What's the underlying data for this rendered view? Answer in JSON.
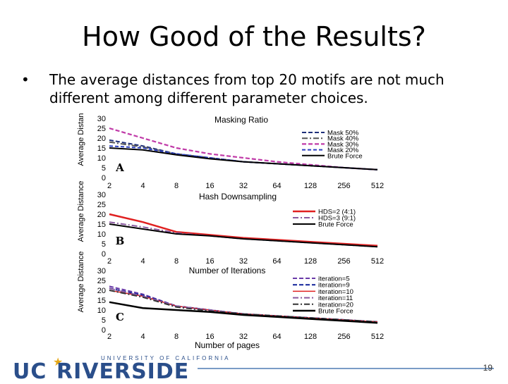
{
  "slide": {
    "title": "How Good of the Results?",
    "bullet_text": "The average distances from top 20 motifs are not much different among different parameter choices.",
    "page_number": "19",
    "logo_main_uc": "UC",
    "logo_main_riv": "RIVERSIDE",
    "logo_sub": "UNIVERSITY OF CALIFORNIA"
  },
  "chart_data": [
    {
      "type": "line",
      "panel_label": "A",
      "title": "Masking Ratio",
      "xlabel": "",
      "ylabel": "Average Distan",
      "categories": [
        "2",
        "4",
        "8",
        "16",
        "32",
        "64",
        "128",
        "256",
        "512"
      ],
      "yticks": [
        "0",
        "5",
        "10",
        "15",
        "20",
        "25",
        "30"
      ],
      "ylim": [
        0,
        30
      ],
      "legend_position": "top-right",
      "series": [
        {
          "name": "Mask 50%",
          "color": "#1f2f7a",
          "dash": "6,3",
          "width": 2,
          "values": [
            19,
            16,
            12,
            10,
            8,
            7,
            6,
            5,
            4
          ]
        },
        {
          "name": "Mask 40%",
          "color": "#555555",
          "dash": "8,3,2,3",
          "width": 2,
          "values": [
            18,
            15.5,
            12,
            10,
            8,
            7,
            6,
            5,
            4
          ]
        },
        {
          "name": "Mask 30%",
          "color": "#c03aa8",
          "dash": "6,3",
          "width": 2.2,
          "values": [
            25,
            20,
            15,
            12,
            10,
            8,
            6.5,
            5,
            4
          ]
        },
        {
          "name": "Mask 20%",
          "color": "#2b3fc0",
          "dash": "5,3",
          "width": 2,
          "values": [
            16,
            15,
            12,
            10,
            8,
            7,
            6,
            5,
            4
          ]
        },
        {
          "name": "Brute Force",
          "color": "#000000",
          "dash": "",
          "width": 2,
          "values": [
            15,
            14,
            11.5,
            9.5,
            8,
            7,
            6,
            5,
            4
          ]
        }
      ]
    },
    {
      "type": "line",
      "panel_label": "B",
      "title": "Hash Downsampling",
      "xlabel": "",
      "ylabel": "Average Distance",
      "categories": [
        "2",
        "4",
        "8",
        "16",
        "32",
        "64",
        "128",
        "256",
        "512"
      ],
      "yticks": [
        "0",
        "5",
        "10",
        "15",
        "20",
        "25",
        "30"
      ],
      "ylim": [
        0,
        30
      ],
      "legend_position": "top-right",
      "series": [
        {
          "name": "HDS=2 (4:1)",
          "color": "#e02020",
          "dash": "",
          "width": 2.5,
          "values": [
            20,
            16,
            11,
            9.5,
            8,
            7,
            6,
            5,
            4
          ]
        },
        {
          "name": "HDS=3 (9:1)",
          "color": "#8a5aa0",
          "dash": "8,3,2,3",
          "width": 2,
          "values": [
            16,
            13.5,
            10.5,
            9,
            7.5,
            6.5,
            5.5,
            4.5,
            3.5
          ]
        },
        {
          "name": "Brute Force",
          "color": "#000000",
          "dash": "",
          "width": 2,
          "values": [
            15,
            12.5,
            10,
            9,
            7.5,
            6.5,
            5.5,
            4.5,
            3.5
          ]
        }
      ]
    },
    {
      "type": "line",
      "panel_label": "C",
      "title": "Number of Iterations",
      "xlabel": "Number of pages",
      "ylabel": "Average Distance",
      "categories": [
        "2",
        "4",
        "8",
        "16",
        "32",
        "64",
        "128",
        "256",
        "512"
      ],
      "yticks": [
        "0",
        "5",
        "10",
        "15",
        "20",
        "25",
        "30"
      ],
      "ylim": [
        0,
        30
      ],
      "legend_position": "top-right",
      "series": [
        {
          "name": "iteration=5",
          "color": "#6a3aa8",
          "dash": "6,3",
          "width": 2,
          "values": [
            22,
            18,
            12,
            10,
            8,
            7,
            6,
            5,
            4
          ]
        },
        {
          "name": "iteration=9",
          "color": "#1f2fa0",
          "dash": "6,3",
          "width": 2.2,
          "values": [
            21,
            17.5,
            12,
            10,
            8,
            7,
            6,
            5,
            4
          ]
        },
        {
          "name": "iteration=10",
          "color": "#e02020",
          "dash": "",
          "width": 1.5,
          "values": [
            20,
            17,
            12,
            10,
            8,
            7,
            6,
            5,
            4
          ]
        },
        {
          "name": "iteration=11",
          "color": "#8a5aa0",
          "dash": "8,3,2,3",
          "width": 2,
          "values": [
            21,
            17,
            12,
            10,
            8,
            7,
            6,
            5,
            4
          ]
        },
        {
          "name": "iteration=20",
          "color": "#333333",
          "dash": "8,3,2,3",
          "width": 2,
          "values": [
            20,
            16.5,
            11.5,
            9.5,
            8,
            7,
            6,
            5,
            4
          ]
        },
        {
          "name": "Brute Force",
          "color": "#000000",
          "dash": "",
          "width": 2.5,
          "values": [
            14,
            11,
            10,
            9,
            7.5,
            6.5,
            5.5,
            4.5,
            3.5
          ]
        }
      ]
    }
  ]
}
